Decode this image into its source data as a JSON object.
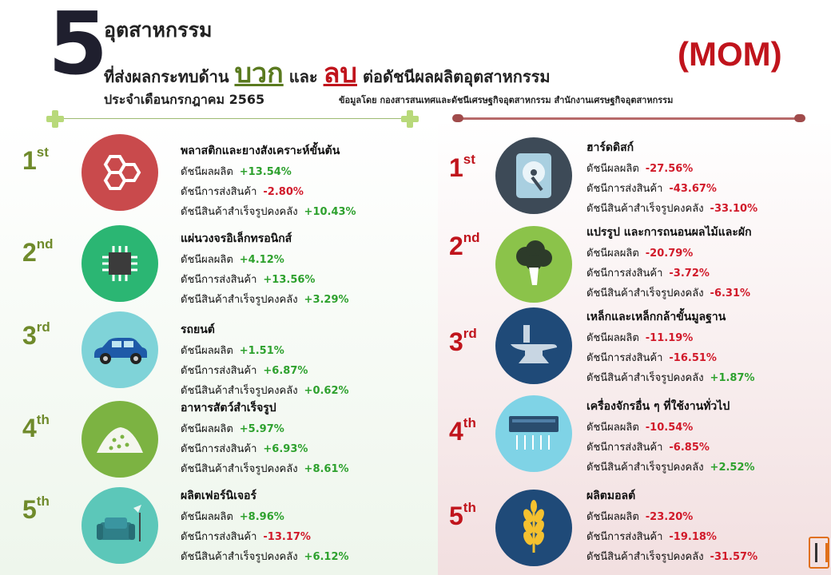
{
  "header": {
    "big_number": "5",
    "line1": "อุตสาหกรรม",
    "line2_pre": "ที่ส่งผลกระทบด้าน",
    "line2_pos": "บวก",
    "line2_mid": "และ",
    "line2_neg": "ลบ",
    "line2_post": "ต่อดัชนีผลผลิตอุตสาหกรรม",
    "line3": "ประจำเดือนกรกฎาคม 2565",
    "tag": "(MOM)",
    "source": "ข้อมูลโดย กองสารสนเทศและดัชนีเศรษฐกิจอุตสาหกรรม สำนักงานเศรษฐกิจอุตสาหกรรม"
  },
  "labels": {
    "prod": "ดัชนีผลผลิต",
    "ship": "ดัชนีการส่งสินค้า",
    "inv": "ดัชนีสินค้าสำเร็จรูปคงคลัง"
  },
  "positive": [
    {
      "rank": "1",
      "suffix": "st",
      "name": "พลาสติกและยางสังเคราะห์ขั้นต้น",
      "prod": "+13.54%",
      "ship": "-2.80%",
      "inv": "+10.43%",
      "icon": "hexagon-molecule-icon",
      "color": "#c94a4c"
    },
    {
      "rank": "2",
      "suffix": "nd",
      "name": "แผ่นวงจรอิเล็กทรอนิกส์",
      "prod": "+4.12%",
      "ship": "+13.56%",
      "inv": "+3.29%",
      "icon": "microchip-icon",
      "color": "#2bb673"
    },
    {
      "rank": "3",
      "suffix": "rd",
      "name": "รถยนต์",
      "prod": "+1.51%",
      "ship": "+6.87%",
      "inv": "+0.62%",
      "icon": "car-icon",
      "color": "#7fd3d8"
    },
    {
      "rank": "4",
      "suffix": "th",
      "name": "อาหารสัตว์สำเร็จรูป",
      "prod": "+5.97%",
      "ship": "+6.93%",
      "inv": "+8.61%",
      "icon": "feed-pile-icon",
      "color": "#7cb342"
    },
    {
      "rank": "5",
      "suffix": "th",
      "name": "ผลิตเฟอร์นิเจอร์",
      "prod": "+8.96%",
      "ship": "-13.17%",
      "inv": "+6.12%",
      "icon": "armchair-lamp-icon",
      "color": "#5cc7b9"
    }
  ],
  "negative": [
    {
      "rank": "1",
      "suffix": "st",
      "name": "ฮาร์ดดิสก์",
      "prod": "-27.56%",
      "ship": "-43.67%",
      "inv": "-33.10%",
      "icon": "hard-disk-icon",
      "color": "#3d4a57"
    },
    {
      "rank": "2",
      "suffix": "nd",
      "name": "แปรรูป และการถนอนผลไม้และผัก",
      "prod": "-20.79%",
      "ship": "-3.72%",
      "inv": "-6.31%",
      "icon": "broccoli-icon",
      "color": "#8bc34a"
    },
    {
      "rank": "3",
      "suffix": "rd",
      "name": "เหล็กและเหล็กกล้าขั้นมูลฐาน",
      "prod": "-11.19%",
      "ship": "-16.51%",
      "inv": "+1.87%",
      "icon": "anvil-icon",
      "color": "#1f4a78"
    },
    {
      "rank": "4",
      "suffix": "th",
      "name": "เครื่องจักรอื่น ๆ ที่ใช้งานทั่วไป",
      "prod": "-10.54%",
      "ship": "-6.85%",
      "inv": "+2.52%",
      "icon": "air-conditioner-icon",
      "color": "#7fd3e6"
    },
    {
      "rank": "5",
      "suffix": "th",
      "name": "ผลิตมอลต์",
      "prod": "-23.20%",
      "ship": "-19.18%",
      "inv": "-31.57%",
      "icon": "wheat-icon",
      "color": "#1f4a78"
    }
  ]
}
